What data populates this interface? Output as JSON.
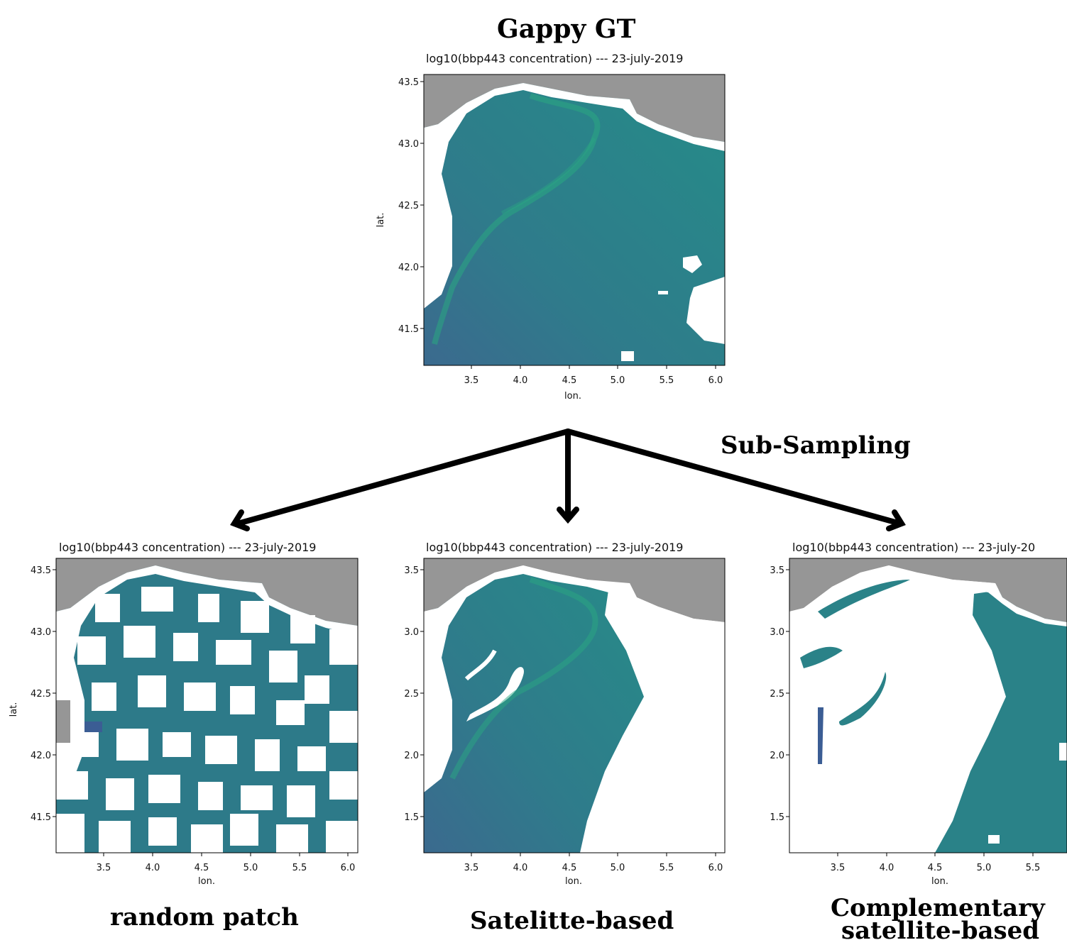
{
  "header": {
    "title": "Gappy GT"
  },
  "arrow_label": "Sub-Sampling",
  "panels": [
    {
      "id": "gt",
      "title": "log10(bbp443 concentration) --- 23-july-2019",
      "xlabel": "lon.",
      "ylabel": "lat.",
      "caption": ""
    },
    {
      "id": "random",
      "title": "log10(bbp443 concentration) --- 23-july-2019",
      "xlabel": "lon.",
      "ylabel": "lat.",
      "caption": "random patch"
    },
    {
      "id": "sat",
      "title": "log10(bbp443 concentration) --- 23-july-2019",
      "xlabel": "lon.",
      "ylabel": "",
      "caption": "Satelitte-based"
    },
    {
      "id": "comp",
      "title": "log10(bbp443 concentration) --- 23-july-20",
      "xlabel": "lon.",
      "ylabel": "",
      "caption_line1": "Complementary",
      "caption_line2": "satellite-based"
    }
  ],
  "axes": {
    "xticks": [
      "3.5",
      "4.0",
      "4.5",
      "5.0",
      "5.5",
      "6.0"
    ],
    "yticks": [
      "43.5",
      "43.0",
      "42.5",
      "42.0",
      "41.5"
    ],
    "yticks_clipped": [
      "3.5",
      "3.0",
      "2.5",
      "2.0",
      "1.5"
    ],
    "yticks_clipped_sat": [
      "3.5",
      "3.0",
      "2.5",
      "2.0",
      "1.5"
    ]
  },
  "colors": {
    "land": "#969696",
    "sea_dark": "#3b6e8f",
    "sea_mid": "#2a8287",
    "sea_light": "#27a383",
    "gap": "#ffffff"
  }
}
